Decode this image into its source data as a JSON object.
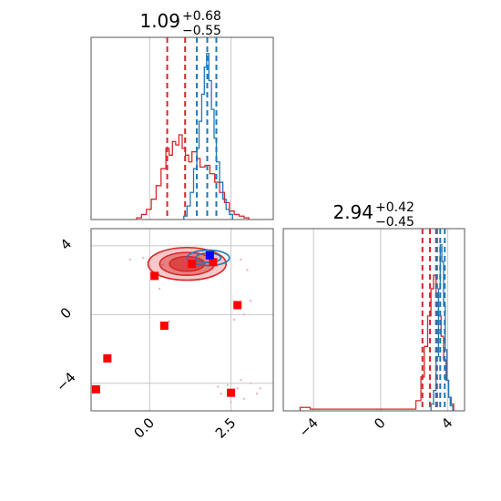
{
  "chart_data": [
    {
      "type": "histogram",
      "panel": "marginal-param-1",
      "title_value": "1.09",
      "title_plus": "+0.68",
      "title_minus": "−0.55",
      "xlim": [
        -1.8,
        3.8
      ],
      "series": [
        {
          "color": "#d62728",
          "bins": [
            [
              -0.4,
              0.01
            ],
            [
              -0.25,
              0.03
            ],
            [
              -0.1,
              0.06
            ],
            [
              0.05,
              0.12
            ],
            [
              0.2,
              0.2
            ],
            [
              0.35,
              0.3
            ],
            [
              0.5,
              0.42
            ],
            [
              0.6,
              0.38
            ],
            [
              0.7,
              0.46
            ],
            [
              0.8,
              0.44
            ],
            [
              0.9,
              0.5
            ],
            [
              1.0,
              0.42
            ],
            [
              1.1,
              0.38
            ],
            [
              1.2,
              0.34
            ],
            [
              1.3,
              0.4
            ],
            [
              1.45,
              0.36
            ],
            [
              1.55,
              0.31
            ],
            [
              1.7,
              0.32
            ],
            [
              1.85,
              0.27
            ],
            [
              2.0,
              0.22
            ],
            [
              2.15,
              0.16
            ],
            [
              2.3,
              0.1
            ],
            [
              2.45,
              0.05
            ],
            [
              2.6,
              0.03
            ],
            [
              2.75,
              0.02
            ],
            [
              2.9,
              0.01
            ],
            [
              3.05,
              0.0
            ]
          ],
          "quantile_lines": [
            0.54,
            1.09,
            1.77
          ]
        },
        {
          "color": "#1f77b4",
          "bins": [
            [
              1.05,
              0.02
            ],
            [
              1.15,
              0.08
            ],
            [
              1.25,
              0.16
            ],
            [
              1.35,
              0.3
            ],
            [
              1.45,
              0.42
            ],
            [
              1.52,
              0.58
            ],
            [
              1.6,
              0.74
            ],
            [
              1.68,
              0.9
            ],
            [
              1.75,
              0.98
            ],
            [
              1.82,
              0.82
            ],
            [
              1.9,
              0.65
            ],
            [
              1.98,
              0.48
            ],
            [
              2.05,
              0.34
            ],
            [
              2.15,
              0.22
            ],
            [
              2.25,
              0.12
            ],
            [
              2.35,
              0.06
            ],
            [
              2.45,
              0.03
            ],
            [
              2.55,
              0.0
            ]
          ],
          "quantile_lines": [
            1.45,
            1.77,
            2.05
          ]
        }
      ]
    },
    {
      "type": "histogram",
      "panel": "marginal-param-2",
      "title_value": "2.94",
      "title_plus": "+0.42",
      "title_minus": "−0.45",
      "xlim": [
        -5.8,
        5.0
      ],
      "xticks": [
        "−4",
        "0",
        "4"
      ],
      "series": [
        {
          "color": "#d62728",
          "bins": [
            [
              -4.8,
              0.02
            ],
            [
              -4.2,
              0.01
            ],
            [
              2.1,
              0.06
            ],
            [
              2.4,
              0.2
            ],
            [
              2.6,
              0.38
            ],
            [
              2.8,
              0.56
            ],
            [
              3.0,
              0.72
            ],
            [
              3.15,
              0.8
            ],
            [
              3.3,
              0.68
            ],
            [
              3.45,
              0.56
            ],
            [
              3.6,
              0.44
            ],
            [
              3.75,
              0.3
            ],
            [
              3.9,
              0.18
            ],
            [
              4.05,
              0.08
            ],
            [
              4.2,
              0.04
            ],
            [
              4.35,
              0.0
            ]
          ],
          "quantile_lines": [
            2.49,
            2.94,
            3.36
          ]
        },
        {
          "color": "#1f77b4",
          "bins": [
            [
              3.0,
              0.04
            ],
            [
              3.15,
              0.12
            ],
            [
              3.3,
              0.32
            ],
            [
              3.45,
              0.72
            ],
            [
              3.55,
              0.98
            ],
            [
              3.65,
              0.88
            ],
            [
              3.75,
              0.62
            ],
            [
              3.85,
              0.36
            ],
            [
              3.95,
              0.18
            ],
            [
              4.05,
              0.08
            ],
            [
              4.15,
              0.03
            ],
            [
              4.3,
              0.0
            ]
          ],
          "quantile_lines": [
            3.3,
            3.55,
            3.82
          ]
        }
      ]
    },
    {
      "type": "scatter",
      "panel": "joint-param-1-vs-param-2",
      "xlim": [
        -1.8,
        3.8
      ],
      "ylim": [
        -5.6,
        5.0
      ],
      "xticks": [
        "0.0",
        "2.5"
      ],
      "yticks": [
        "4",
        "0",
        "−4"
      ],
      "contours": [
        {
          "color": "#d62728",
          "fill": "#d62728",
          "center": [
            1.15,
            2.95
          ],
          "radius": [
            1.2,
            0.95
          ],
          "levels": [
            1.0,
            0.7,
            0.45
          ]
        },
        {
          "color": "#1f77b4",
          "fill": "none",
          "center": [
            1.8,
            3.3
          ],
          "radius": [
            0.65,
            0.45
          ],
          "levels": [
            1.0,
            0.6
          ]
        }
      ],
      "red_markers": [
        [
          1.3,
          2.95
        ],
        [
          1.95,
          3.05
        ],
        [
          0.15,
          2.25
        ],
        [
          -1.3,
          -2.55
        ],
        [
          0.45,
          -0.65
        ],
        [
          2.7,
          0.55
        ],
        [
          -1.65,
          -4.35
        ],
        [
          2.5,
          -4.55
        ]
      ],
      "blue_markers": [
        [
          1.85,
          3.45
        ]
      ],
      "scatter_points": [
        [
          2.4,
          -4.1
        ],
        [
          2.7,
          -4.3
        ],
        [
          2.2,
          -4.6
        ],
        [
          3.1,
          -4.0
        ],
        [
          2.9,
          -4.9
        ],
        [
          2.5,
          -5.1
        ],
        [
          3.3,
          -4.6
        ],
        [
          2.1,
          -4.2
        ],
        [
          2.8,
          -3.8
        ],
        [
          3.4,
          -4.3
        ],
        [
          0.4,
          2.9
        ],
        [
          -0.2,
          3.3
        ],
        [
          2.8,
          3.2
        ],
        [
          3.0,
          2.6
        ],
        [
          0.3,
          1.5
        ],
        [
          2.9,
          0.0
        ],
        [
          3.1,
          0.8
        ],
        [
          2.6,
          -0.3
        ],
        [
          0.6,
          -0.4
        ],
        [
          -0.6,
          3.2
        ]
      ]
    }
  ]
}
